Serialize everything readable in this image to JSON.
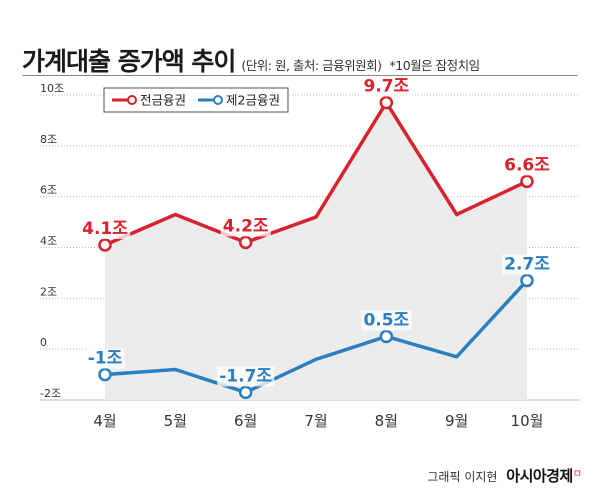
{
  "header": {
    "title": "가계대출 증가액 추이",
    "subtitle": "(단위: 원, 출처: 금융위원회)",
    "note": "*10월은 잠정치임"
  },
  "credit": {
    "byline": "그래픽 이지현",
    "brand": "아시아경제",
    "brand_mark": "ㅁ"
  },
  "chart_data": {
    "type": "line",
    "categories": [
      "4월",
      "5월",
      "6월",
      "7월",
      "8월",
      "9월",
      "10월"
    ],
    "ylim": [
      -2,
      10
    ],
    "yticks": [
      -2,
      0,
      2,
      4,
      6,
      8,
      10
    ],
    "ytick_labels": [
      "-2조",
      "0",
      "2조",
      "4조",
      "6조",
      "8조",
      "10조"
    ],
    "grid": "horizontal",
    "legend_position": "top-left",
    "series": [
      {
        "name": "전금융권",
        "color": "#d7232e",
        "values": [
          4.1,
          5.3,
          4.2,
          5.2,
          9.7,
          5.3,
          6.6
        ],
        "labels": [
          "4.1조",
          null,
          "4.2조",
          null,
          "9.7조",
          null,
          "6.6조"
        ],
        "shade_below": true
      },
      {
        "name": "제2금융권",
        "color": "#2a7fbf",
        "values": [
          -1.0,
          -0.8,
          -1.7,
          -0.4,
          0.5,
          -0.3,
          2.7
        ],
        "labels": [
          "-1조",
          null,
          "-1.7조",
          null,
          "0.5조",
          null,
          "2.7조"
        ],
        "shade_below": false
      }
    ]
  }
}
